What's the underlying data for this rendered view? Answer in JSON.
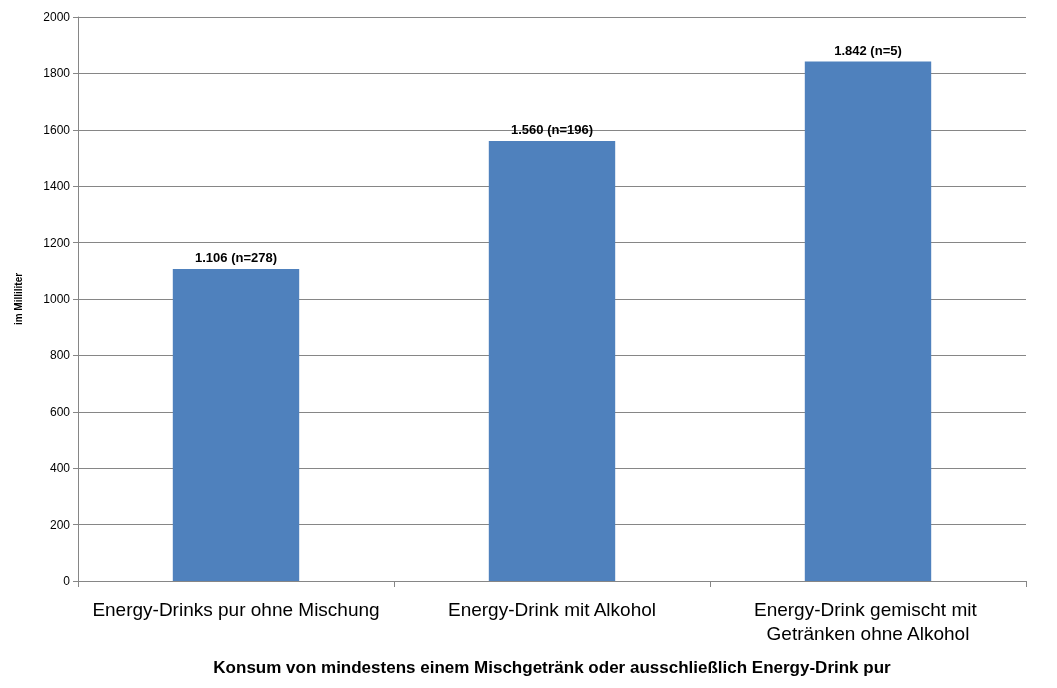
{
  "chart_data": {
    "type": "bar",
    "xlabel": "Konsum von mindestens einem Mischgetränk oder ausschließlich Energy-Drink pur",
    "ylabel": "im Milliliter",
    "categories": [
      "Energy-Drinks pur ohne Mischung",
      "Energy-Drink mit Alkohol",
      "Energy-Drink gemischt mit Getränken ohne Alkohol"
    ],
    "values": [
      1106,
      1560,
      1842
    ],
    "value_labels": [
      "1.106 (n=278)",
      "1.560 (n=196)",
      "1.842 (n=5)"
    ],
    "color": "#4f81bd",
    "ylim": [
      0,
      2000
    ],
    "yticks": [
      0,
      200,
      400,
      600,
      800,
      1000,
      1200,
      1400,
      1600,
      1800,
      2000
    ],
    "grid": "y"
  }
}
